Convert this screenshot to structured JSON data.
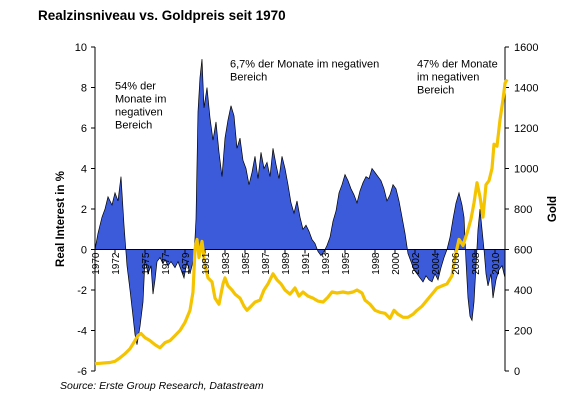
{
  "chart_data": {
    "type": "area",
    "title": "Realzinsniveau vs. Goldpreis seit 1970",
    "ylabel": "Real Interest in %",
    "y2label": "Gold",
    "ylim": [
      -6,
      10
    ],
    "y2lim": [
      0,
      1600
    ],
    "yticks": [
      "10",
      "8",
      "6",
      "4",
      "2",
      "0",
      "-2",
      "-4",
      "-6"
    ],
    "y2ticks": [
      "1600",
      "1400",
      "1200",
      "1000",
      "800",
      "600",
      "400",
      "200",
      "0"
    ],
    "xticks": [
      "1970",
      "1972",
      "1975",
      "1977",
      "1979",
      "1981",
      "1983",
      "1985",
      "1987",
      "1989",
      "1991",
      "1993",
      "1995",
      "1998",
      "2000",
      "2002",
      "2004",
      "2006",
      "2008",
      "2010"
    ],
    "xlim": [
      1970,
      2011
    ],
    "grid": false,
    "colors": {
      "real_interest": "#3b5bdb",
      "gold": "#f5c400"
    },
    "series": [
      {
        "name": "Real Interest",
        "axis": "left",
        "style": "filled-area",
        "points": [
          [
            1970,
            0
          ],
          [
            1970.3,
            0.8
          ],
          [
            1970.7,
            1.6
          ],
          [
            1971,
            2.0
          ],
          [
            1971.3,
            2.6
          ],
          [
            1971.7,
            2.2
          ],
          [
            1972,
            2.8
          ],
          [
            1972.3,
            2.4
          ],
          [
            1972.6,
            3.6
          ],
          [
            1972.9,
            1.2
          ],
          [
            1973.2,
            -0.8
          ],
          [
            1973.5,
            -2.0
          ],
          [
            1973.8,
            -3.3
          ],
          [
            1974,
            -4.2
          ],
          [
            1974.2,
            -4.7
          ],
          [
            1974.5,
            -3.8
          ],
          [
            1974.8,
            -2.6
          ],
          [
            1975,
            -0.5
          ],
          [
            1975.3,
            -1.2
          ],
          [
            1975.6,
            -0.8
          ],
          [
            1975.8,
            -2.2
          ],
          [
            1976,
            -1.5
          ],
          [
            1976.2,
            -0.6
          ],
          [
            1976.5,
            -0.4
          ],
          [
            1976.8,
            -0.7
          ],
          [
            1977,
            -0.5
          ],
          [
            1977.3,
            -0.8
          ],
          [
            1977.6,
            -0.6
          ],
          [
            1978,
            -0.9
          ],
          [
            1978.3,
            -0.6
          ],
          [
            1978.6,
            -1.0
          ],
          [
            1978.9,
            -1.4
          ],
          [
            1979.2,
            -0.6
          ],
          [
            1979.5,
            -1.2
          ],
          [
            1979.9,
            -0.4
          ],
          [
            1980.1,
            1.5
          ],
          [
            1980.3,
            6.8
          ],
          [
            1980.5,
            8.5
          ],
          [
            1980.7,
            9.4
          ],
          [
            1980.9,
            7.0
          ],
          [
            1981.2,
            8.0
          ],
          [
            1981.5,
            6.5
          ],
          [
            1981.8,
            5.4
          ],
          [
            1982.1,
            6.3
          ],
          [
            1982.4,
            4.8
          ],
          [
            1982.7,
            3.6
          ],
          [
            1983,
            5.5
          ],
          [
            1983.3,
            6.4
          ],
          [
            1983.6,
            7.1
          ],
          [
            1983.9,
            6.6
          ],
          [
            1984.2,
            5.0
          ],
          [
            1984.5,
            5.5
          ],
          [
            1984.8,
            4.4
          ],
          [
            1985.1,
            4.0
          ],
          [
            1985.4,
            3.2
          ],
          [
            1985.7,
            3.8
          ],
          [
            1986,
            4.6
          ],
          [
            1986.3,
            3.5
          ],
          [
            1986.6,
            4.8
          ],
          [
            1986.9,
            4.0
          ],
          [
            1987.2,
            4.3
          ],
          [
            1987.5,
            3.6
          ],
          [
            1987.8,
            5.0
          ],
          [
            1988.1,
            4.2
          ],
          [
            1988.4,
            3.5
          ],
          [
            1988.7,
            4.6
          ],
          [
            1989,
            4.0
          ],
          [
            1989.3,
            3.2
          ],
          [
            1989.6,
            2.3
          ],
          [
            1989.9,
            1.8
          ],
          [
            1990.2,
            2.4
          ],
          [
            1990.5,
            1.6
          ],
          [
            1990.8,
            1.0
          ],
          [
            1991.1,
            1.2
          ],
          [
            1991.4,
            0.9
          ],
          [
            1991.7,
            0.5
          ],
          [
            1992,
            0.3
          ],
          [
            1992.3,
            -0.1
          ],
          [
            1992.6,
            -0.3
          ],
          [
            1992.9,
            -0.1
          ],
          [
            1993.2,
            0.2
          ],
          [
            1993.5,
            0.6
          ],
          [
            1993.8,
            1.4
          ],
          [
            1994.1,
            1.9
          ],
          [
            1994.4,
            2.8
          ],
          [
            1994.7,
            3.2
          ],
          [
            1995,
            3.7
          ],
          [
            1995.3,
            3.4
          ],
          [
            1995.6,
            3.0
          ],
          [
            1995.9,
            2.7
          ],
          [
            1996.2,
            2.3
          ],
          [
            1996.5,
            2.9
          ],
          [
            1996.8,
            3.3
          ],
          [
            1997.1,
            3.6
          ],
          [
            1997.4,
            3.5
          ],
          [
            1997.7,
            4.0
          ],
          [
            1998,
            3.8
          ],
          [
            1998.3,
            3.6
          ],
          [
            1998.6,
            3.4
          ],
          [
            1998.9,
            3.0
          ],
          [
            1999.2,
            2.4
          ],
          [
            1999.5,
            2.7
          ],
          [
            1999.8,
            3.2
          ],
          [
            2000.1,
            3.0
          ],
          [
            2000.4,
            2.4
          ],
          [
            2000.7,
            1.6
          ],
          [
            2001,
            0.8
          ],
          [
            2001.3,
            -0.2
          ],
          [
            2001.6,
            -0.6
          ],
          [
            2001.9,
            -1.0
          ],
          [
            2002.2,
            -1.2
          ],
          [
            2002.5,
            -1.4
          ],
          [
            2002.8,
            -1.6
          ],
          [
            2003.1,
            -1.3
          ],
          [
            2003.4,
            -1.5
          ],
          [
            2003.7,
            -1.6
          ],
          [
            2004,
            -1.2
          ],
          [
            2004.3,
            -1.5
          ],
          [
            2004.6,
            -0.9
          ],
          [
            2004.9,
            -0.4
          ],
          [
            2005.2,
            0.0
          ],
          [
            2005.5,
            0.6
          ],
          [
            2005.8,
            1.5
          ],
          [
            2006.1,
            2.3
          ],
          [
            2006.4,
            2.8
          ],
          [
            2006.7,
            2.2
          ],
          [
            2006.9,
            1.6
          ],
          [
            2007.1,
            -0.6
          ],
          [
            2007.3,
            -2.4
          ],
          [
            2007.5,
            -3.3
          ],
          [
            2007.7,
            -3.5
          ],
          [
            2007.9,
            -2.6
          ],
          [
            2008.1,
            -0.8
          ],
          [
            2008.3,
            1.0
          ],
          [
            2008.5,
            2.0
          ],
          [
            2008.7,
            1.0
          ],
          [
            2008.9,
            0.0
          ],
          [
            2009.1,
            -1.2
          ],
          [
            2009.3,
            -1.8
          ],
          [
            2009.6,
            -1.2
          ],
          [
            2009.8,
            -2.4
          ],
          [
            2010.1,
            -1.5
          ],
          [
            2010.4,
            -1.0
          ],
          [
            2010.7,
            -0.8
          ],
          [
            2011,
            -1.4
          ]
        ]
      },
      {
        "name": "Gold",
        "axis": "right",
        "style": "line",
        "points": [
          [
            1970,
            36
          ],
          [
            1970.5,
            38
          ],
          [
            1971,
            40
          ],
          [
            1971.5,
            42
          ],
          [
            1972,
            48
          ],
          [
            1972.5,
            65
          ],
          [
            1973,
            85
          ],
          [
            1973.5,
            110
          ],
          [
            1974,
            150
          ],
          [
            1974.3,
            175
          ],
          [
            1974.6,
            185
          ],
          [
            1975,
            165
          ],
          [
            1975.5,
            150
          ],
          [
            1976,
            130
          ],
          [
            1976.5,
            115
          ],
          [
            1977,
            140
          ],
          [
            1977.5,
            150
          ],
          [
            1978,
            175
          ],
          [
            1978.5,
            200
          ],
          [
            1979,
            240
          ],
          [
            1979.5,
            300
          ],
          [
            1979.8,
            390
          ],
          [
            1980,
            600
          ],
          [
            1980.2,
            650
          ],
          [
            1980.4,
            560
          ],
          [
            1980.7,
            640
          ],
          [
            1981,
            520
          ],
          [
            1981.3,
            460
          ],
          [
            1981.7,
            440
          ],
          [
            1982,
            360
          ],
          [
            1982.4,
            330
          ],
          [
            1982.8,
            430
          ],
          [
            1983,
            460
          ],
          [
            1983.3,
            420
          ],
          [
            1983.7,
            400
          ],
          [
            1984,
            380
          ],
          [
            1984.5,
            360
          ],
          [
            1984.9,
            320
          ],
          [
            1985.2,
            300
          ],
          [
            1985.6,
            320
          ],
          [
            1986,
            340
          ],
          [
            1986.5,
            350
          ],
          [
            1986.9,
            400
          ],
          [
            1987.3,
            430
          ],
          [
            1987.8,
            480
          ],
          [
            1988.2,
            450
          ],
          [
            1988.6,
            430
          ],
          [
            1989,
            400
          ],
          [
            1989.5,
            380
          ],
          [
            1990,
            410
          ],
          [
            1990.4,
            370
          ],
          [
            1990.8,
            390
          ],
          [
            1991.3,
            370
          ],
          [
            1991.8,
            360
          ],
          [
            1992.3,
            345
          ],
          [
            1992.8,
            340
          ],
          [
            1993.3,
            365
          ],
          [
            1993.7,
            390
          ],
          [
            1994.2,
            385
          ],
          [
            1994.8,
            390
          ],
          [
            1995.3,
            385
          ],
          [
            1995.8,
            390
          ],
          [
            1996.2,
            400
          ],
          [
            1996.7,
            385
          ],
          [
            1997,
            350
          ],
          [
            1997.5,
            330
          ],
          [
            1998,
            300
          ],
          [
            1998.5,
            290
          ],
          [
            1999,
            285
          ],
          [
            1999.5,
            260
          ],
          [
            1999.9,
            300
          ],
          [
            2000.3,
            280
          ],
          [
            2000.8,
            265
          ],
          [
            2001.3,
            265
          ],
          [
            2001.8,
            280
          ],
          [
            2002.2,
            300
          ],
          [
            2002.7,
            320
          ],
          [
            2003.2,
            350
          ],
          [
            2003.7,
            380
          ],
          [
            2004.2,
            410
          ],
          [
            2004.7,
            420
          ],
          [
            2005.2,
            430
          ],
          [
            2005.7,
            470
          ],
          [
            2006,
            560
          ],
          [
            2006.4,
            650
          ],
          [
            2006.8,
            620
          ],
          [
            2007.2,
            680
          ],
          [
            2007.6,
            750
          ],
          [
            2007.9,
            830
          ],
          [
            2008.2,
            930
          ],
          [
            2008.5,
            860
          ],
          [
            2008.8,
            760
          ],
          [
            2009.1,
            920
          ],
          [
            2009.4,
            940
          ],
          [
            2009.7,
            1000
          ],
          [
            2009.9,
            1120
          ],
          [
            2010.2,
            1110
          ],
          [
            2010.5,
            1240
          ],
          [
            2010.8,
            1340
          ],
          [
            2011,
            1420
          ],
          [
            2011.2,
            1440
          ]
        ]
      }
    ],
    "annotations": [
      {
        "lines": [
          "54% der",
          "Monate im",
          "negativen",
          "Bereich"
        ],
        "at": [
          1972,
          7.9
        ]
      },
      {
        "lines": [
          "6,7% der Monate im negativen",
          "Bereich"
        ],
        "at": [
          1983.5,
          9.0
        ]
      },
      {
        "lines": [
          "47% der Monate",
          "im negativen",
          "Bereich"
        ],
        "at": [
          2002.2,
          9.0
        ]
      }
    ]
  },
  "source": "Source: Erste Group Research, Datastream"
}
